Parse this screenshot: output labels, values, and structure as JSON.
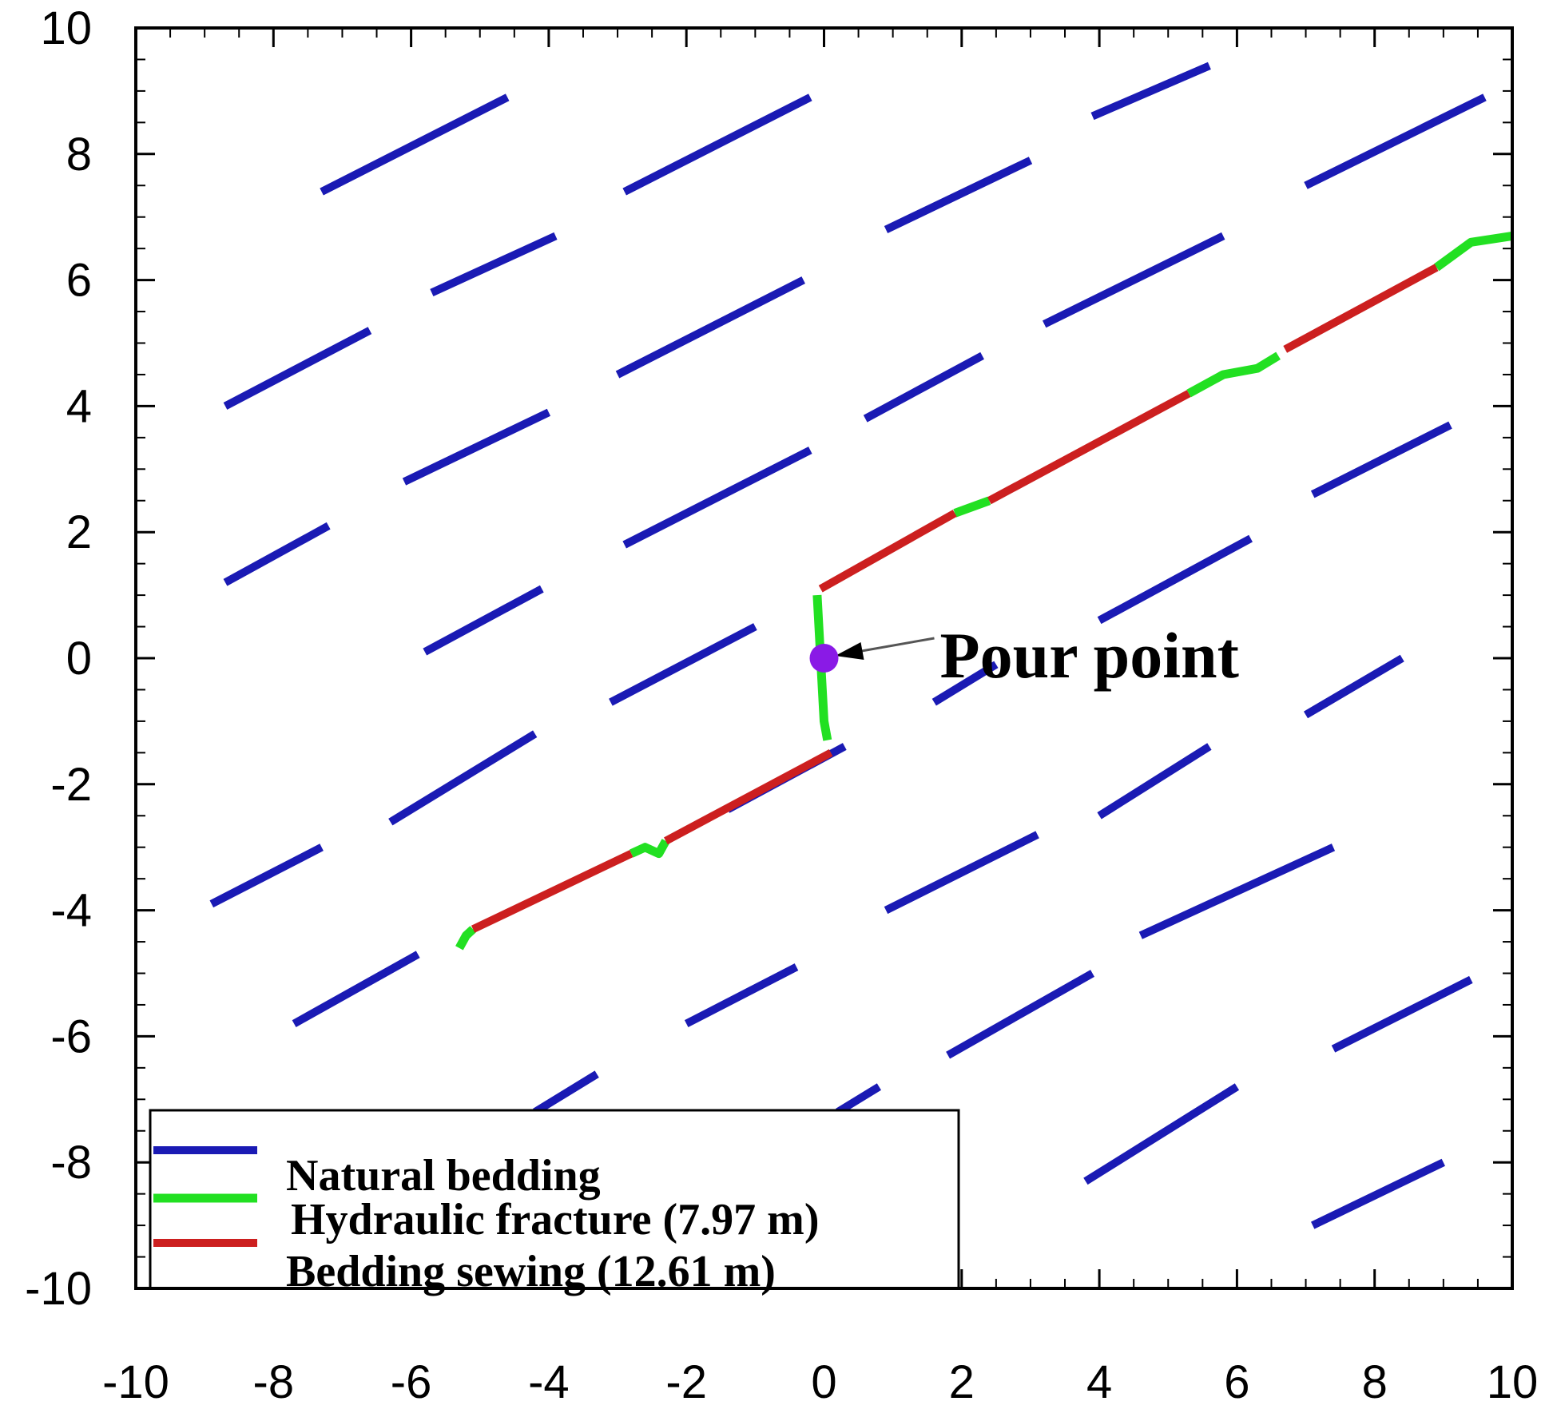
{
  "chart_data": {
    "type": "line",
    "title": "",
    "xlabel": "",
    "ylabel": "",
    "xlim": [
      -10,
      10
    ],
    "ylim": [
      -10,
      10
    ],
    "x_ticks": [
      "-10",
      "-8",
      "-6",
      "-4",
      "-2",
      "0",
      "2",
      "4",
      "6",
      "8",
      "10"
    ],
    "y_ticks": [
      "-10",
      "-8",
      "-6",
      "-4",
      "-2",
      "0",
      "2",
      "4",
      "6",
      "8",
      "10"
    ],
    "grid": false,
    "legend_position": "bottom-left",
    "colors": {
      "natural_bedding": "#1a1ab4",
      "hydraulic_fracture": "#22e022",
      "bedding_sewing": "#cc1f1f",
      "pour_point": "#8a1ae6"
    },
    "series": [
      {
        "name": "Natural bedding",
        "color": "#1a1ab4",
        "segments": [
          [
            [
              -7.3,
              7.4
            ],
            [
              -4.6,
              8.9
            ]
          ],
          [
            [
              -2.9,
              7.4
            ],
            [
              -0.2,
              8.9
            ]
          ],
          [
            [
              0.9,
              6.8
            ],
            [
              3.0,
              7.9
            ]
          ],
          [
            [
              3.9,
              8.6
            ],
            [
              5.6,
              9.4
            ]
          ],
          [
            [
              7.0,
              7.5
            ],
            [
              9.6,
              8.9
            ]
          ],
          [
            [
              -5.7,
              5.8
            ],
            [
              -3.9,
              6.7
            ]
          ],
          [
            [
              -8.7,
              4.0
            ],
            [
              -6.6,
              5.2
            ]
          ],
          [
            [
              -3.0,
              4.5
            ],
            [
              -0.3,
              6.0
            ]
          ],
          [
            [
              3.2,
              5.3
            ],
            [
              5.8,
              6.7
            ]
          ],
          [
            [
              0.6,
              3.8
            ],
            [
              2.3,
              4.8
            ]
          ],
          [
            [
              -6.1,
              2.8
            ],
            [
              -4.0,
              3.9
            ]
          ],
          [
            [
              -8.7,
              1.2
            ],
            [
              -7.2,
              2.1
            ]
          ],
          [
            [
              -2.9,
              1.8
            ],
            [
              -0.2,
              3.3
            ]
          ],
          [
            [
              7.1,
              2.6
            ],
            [
              9.1,
              3.7
            ]
          ],
          [
            [
              -5.8,
              0.1
            ],
            [
              -4.1,
              1.1
            ]
          ],
          [
            [
              -3.1,
              -0.7
            ],
            [
              -1.0,
              0.5
            ]
          ],
          [
            [
              4.0,
              0.6
            ],
            [
              6.2,
              1.9
            ]
          ],
          [
            [
              1.6,
              -0.7
            ],
            [
              2.5,
              -0.1
            ]
          ],
          [
            [
              7.0,
              -0.9
            ],
            [
              8.4,
              0.0
            ]
          ],
          [
            [
              -6.3,
              -2.6
            ],
            [
              -4.2,
              -1.2
            ]
          ],
          [
            [
              -8.9,
              -3.9
            ],
            [
              -7.3,
              -3.0
            ]
          ],
          [
            [
              -1.4,
              -2.4
            ],
            [
              0.3,
              -1.4
            ]
          ],
          [
            [
              4.0,
              -2.5
            ],
            [
              5.6,
              -1.4
            ]
          ],
          [
            [
              0.9,
              -4.0
            ],
            [
              3.1,
              -2.8
            ]
          ],
          [
            [
              4.6,
              -4.4
            ],
            [
              7.4,
              -3.0
            ]
          ],
          [
            [
              -7.7,
              -5.8
            ],
            [
              -5.9,
              -4.7
            ]
          ],
          [
            [
              -2.0,
              -5.8
            ],
            [
              -0.4,
              -4.9
            ]
          ],
          [
            [
              1.8,
              -6.3
            ],
            [
              3.9,
              -5.0
            ]
          ],
          [
            [
              7.4,
              -6.2
            ],
            [
              9.4,
              -5.1
            ]
          ],
          [
            [
              -4.2,
              -7.2
            ],
            [
              -3.3,
              -6.6
            ]
          ],
          [
            [
              0.2,
              -7.2
            ],
            [
              0.8,
              -6.8
            ]
          ],
          [
            [
              3.8,
              -8.3
            ],
            [
              6.0,
              -6.8
            ]
          ],
          [
            [
              7.1,
              -9.0
            ],
            [
              9.0,
              -8.0
            ]
          ]
        ]
      },
      {
        "name": "Hydraulic fracture (7.97 m)",
        "color": "#22e022",
        "segments": [
          [
            [
              -0.1,
              1.0
            ],
            [
              -0.05,
              0.0
            ],
            [
              0.0,
              -1.0
            ],
            [
              0.05,
              -1.3
            ]
          ],
          [
            [
              1.9,
              2.3
            ],
            [
              2.4,
              2.5
            ]
          ],
          [
            [
              5.3,
              4.2
            ],
            [
              5.8,
              4.5
            ],
            [
              6.3,
              4.6
            ],
            [
              6.6,
              4.8
            ]
          ],
          [
            [
              8.9,
              6.2
            ],
            [
              9.4,
              6.6
            ],
            [
              10.0,
              6.7
            ]
          ],
          [
            [
              -2.8,
              -3.1
            ],
            [
              -2.6,
              -3.0
            ],
            [
              -2.4,
              -3.1
            ],
            [
              -2.3,
              -2.9
            ]
          ],
          [
            [
              -5.3,
              -4.6
            ],
            [
              -5.2,
              -4.4
            ],
            [
              -5.1,
              -4.3
            ]
          ]
        ]
      },
      {
        "name": "Bedding sewing (12.61 m)",
        "color": "#cc1f1f",
        "segments": [
          [
            [
              -0.05,
              1.1
            ],
            [
              1.9,
              2.3
            ]
          ],
          [
            [
              2.4,
              2.5
            ],
            [
              5.3,
              4.2
            ]
          ],
          [
            [
              6.7,
              4.9
            ],
            [
              8.9,
              6.2
            ]
          ],
          [
            [
              -2.3,
              -2.9
            ],
            [
              0.1,
              -1.5
            ]
          ],
          [
            [
              -5.1,
              -4.3
            ],
            [
              -2.8,
              -3.1
            ]
          ]
        ]
      }
    ],
    "annotations": [
      {
        "text": "Pour point",
        "x": 0.0,
        "y": 0.0
      }
    ]
  }
}
